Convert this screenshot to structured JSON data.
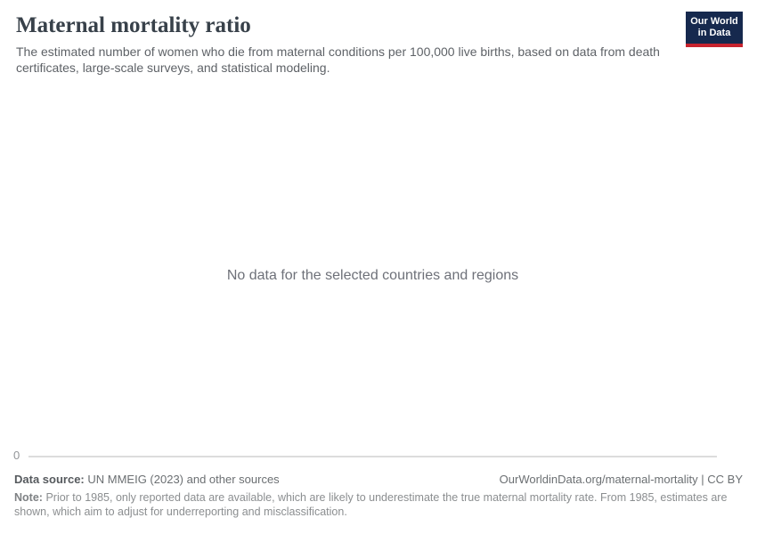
{
  "header": {
    "title": "Maternal mortality ratio",
    "subtitle": "The estimated number of women who die from maternal conditions per 100,000 live births, based on data from death certificates, large-scale surveys, and statistical modeling.",
    "logo": {
      "line1": "Our World",
      "line2": "in Data"
    }
  },
  "chart": {
    "empty_message": "No data for the selected countries and regions",
    "y_axis_tick": "0"
  },
  "chart_data": {
    "type": "line",
    "title": "Maternal mortality ratio",
    "subtitle": "The estimated number of women who die from maternal conditions per 100,000 live births, based on data from death certificates, large-scale surveys, and statistical modeling.",
    "series": [],
    "x": [],
    "y_ticks": [
      0
    ],
    "ylim": [
      0,
      null
    ],
    "grid": "single zero baseline gridline only",
    "legend_position": "none",
    "empty_state": true,
    "empty_message": "No data for the selected countries and regions"
  },
  "footer": {
    "data_source_label": "Data source:",
    "data_source_value": "UN MMEIG (2023) and other sources",
    "url_text": "OurWorldinData.org/maternal-mortality | CC BY",
    "note_label": "Note:",
    "note_text": "Prior to 1985, only reported data are available, which are likely to underestimate the true maternal mortality rate. From 1985, estimates are shown, which aim to adjust for underreporting and misclassification."
  },
  "colors": {
    "logo-navy": "#16294e",
    "logo-red": "#c7232e",
    "title-text": "#38414a",
    "subtitle-text": "#5e6267",
    "muted-text": "#6e7179",
    "tick-text": "#929598",
    "gridline": "#dcdcdc",
    "footer-text": "#6b6f72",
    "note-text": "#8b8e90"
  }
}
